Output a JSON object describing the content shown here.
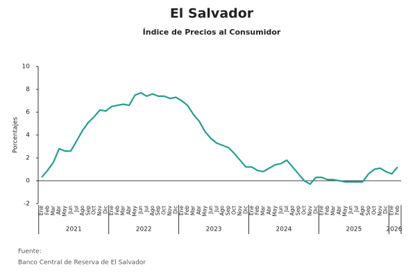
{
  "chart_data": {
    "type": "line",
    "title": "El Salvador",
    "subtitle": "Índice de Precios al Consumidor",
    "y_label": "Porcentajes",
    "source_label": "Fuente:",
    "source": "Banco Central de Reserva de El Salvador",
    "categories": [
      "Ene",
      "Feb",
      "Mar",
      "Abr",
      "May",
      "Jun",
      "Jul",
      "Ago",
      "Sep",
      "Oct",
      "Nov",
      "Dic",
      "Ene",
      "Feb",
      "Mar",
      "Abr",
      "May",
      "Jun",
      "Jul",
      "Ago",
      "Sep",
      "Oct",
      "Nov",
      "Dic",
      "Ene",
      "Feb",
      "Mar",
      "Abr",
      "May",
      "Jun",
      "Jul",
      "Ago",
      "Sep",
      "Oct",
      "Nov",
      "Dic",
      "Ene",
      "Feb",
      "Mar",
      "Abr",
      "May",
      "Jun",
      "Jul",
      "Ago",
      "Sep",
      "Oct",
      "Nov",
      "Dic",
      "Ene",
      "Feb",
      "Mar",
      "Abr",
      "May",
      "Jun",
      "Jul",
      "Ago",
      "Sep",
      "Oct",
      "Nov",
      "Dic",
      "Ene",
      "Feb"
    ],
    "years": [
      "2021",
      "2022",
      "2023",
      "2024",
      "2025",
      "2026"
    ],
    "series": [
      {
        "name": "IPC",
        "color": "#1f9e8e",
        "values": [
          0.3,
          0.9,
          1.6,
          2.8,
          2.6,
          2.6,
          3.5,
          4.4,
          5.1,
          5.6,
          6.2,
          6.1,
          6.5,
          6.6,
          6.7,
          6.6,
          7.5,
          7.7,
          7.4,
          7.6,
          7.4,
          7.4,
          7.2,
          7.3,
          7.0,
          6.6,
          5.8,
          5.2,
          4.3,
          3.7,
          3.3,
          3.1,
          2.9,
          2.4,
          1.8,
          1.2,
          1.2,
          0.9,
          0.8,
          1.1,
          1.4,
          1.5,
          1.8,
          1.2,
          0.6,
          0.0,
          -0.3,
          0.3,
          0.3,
          0.1,
          0.1,
          0.0,
          -0.1,
          -0.1,
          -0.1,
          -0.1,
          0.6,
          1.0,
          1.1,
          0.8,
          0.6,
          1.2
        ]
      }
    ],
    "ylim": [
      -2,
      10
    ],
    "yticks": [
      -2,
      0,
      2,
      4,
      6,
      8,
      10
    ]
  }
}
